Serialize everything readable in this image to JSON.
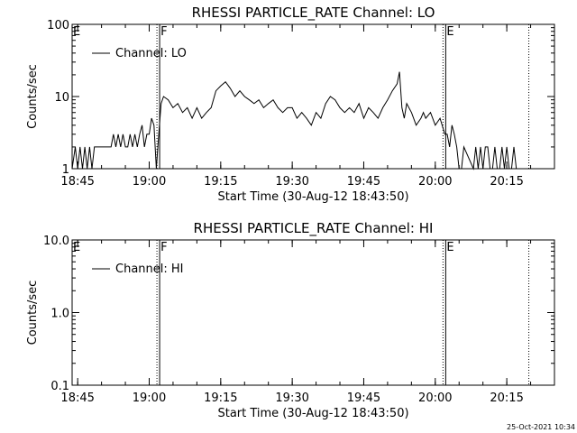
{
  "chart_data": [
    {
      "type": "line",
      "title": "RHESSI PARTICLE_RATE Channel: LO",
      "xlabel": "Start Time (30-Aug-12 18:43:50)",
      "ylabel": "Counts/sec",
      "y_scale": "log",
      "ylim": [
        1,
        100
      ],
      "xlim": [
        "18:43:50",
        "20:25:00"
      ],
      "x_ticks": [
        "18:45",
        "19:00",
        "19:15",
        "19:30",
        "19:45",
        "20:00",
        "20:15"
      ],
      "y_ticks": [
        "1",
        "10",
        "100"
      ],
      "legend": {
        "placement": "top-left",
        "entries": [
          "Channel: LO"
        ]
      },
      "region_markers": [
        {
          "label": "E",
          "time": "18:43:50",
          "style": "dotted"
        },
        {
          "label": "F",
          "time": "19:02",
          "style": "dotted+solid"
        },
        {
          "label": "E",
          "time": "20:02",
          "style": "dotted+solid"
        },
        {
          "label": "",
          "time": "20:20",
          "style": "dotted"
        }
      ],
      "series": [
        {
          "name": "Channel: LO",
          "x": [
            "18:43:50",
            "18:44:30",
            "18:45:00",
            "18:45:30",
            "18:46:00",
            "18:46:30",
            "18:47:00",
            "18:47:30",
            "18:48:00",
            "18:48:30",
            "18:49:00",
            "18:52:00",
            "18:52:30",
            "18:53:00",
            "18:53:30",
            "18:54:00",
            "18:54:30",
            "18:55:00",
            "18:55:30",
            "18:56:00",
            "18:56:30",
            "18:57:00",
            "18:57:30",
            "18:58:00",
            "18:58:30",
            "18:59:00",
            "18:59:30",
            "19:00:00",
            "19:00:30",
            "19:01:00",
            "19:01:30",
            "19:02:00",
            "19:02:30",
            "19:03:00",
            "19:04:00",
            "19:05:00",
            "19:06:00",
            "19:07:00",
            "19:08:00",
            "19:09:00",
            "19:10:00",
            "19:11:00",
            "19:12:00",
            "19:13:00",
            "19:14:00",
            "19:15:00",
            "19:16:00",
            "19:17:00",
            "19:18:00",
            "19:19:00",
            "19:20:00",
            "19:21:00",
            "19:22:00",
            "19:23:00",
            "19:24:00",
            "19:25:00",
            "19:26:00",
            "19:27:00",
            "19:28:00",
            "19:29:00",
            "19:30:00",
            "19:31:00",
            "19:32:00",
            "19:33:00",
            "19:34:00",
            "19:35:00",
            "19:36:00",
            "19:37:00",
            "19:38:00",
            "19:39:00",
            "19:40:00",
            "19:41:00",
            "19:42:00",
            "19:43:00",
            "19:44:00",
            "19:45:00",
            "19:46:00",
            "19:47:00",
            "19:48:00",
            "19:49:00",
            "19:50:00",
            "19:51:00",
            "19:52:00",
            "19:52:30",
            "19:53:00",
            "19:53:30",
            "19:54:00",
            "19:55:00",
            "19:56:00",
            "19:57:00",
            "19:57:30",
            "19:58:00",
            "19:59:00",
            "20:00:00",
            "20:01:00",
            "20:02:00",
            "20:02:30",
            "20:03:00",
            "20:03:30",
            "20:04:00",
            "20:04:30",
            "20:05:00",
            "20:05:30",
            "20:06:00",
            "20:08:00",
            "20:08:30",
            "20:09:00",
            "20:09:30",
            "20:10:00",
            "20:10:30",
            "20:11:00",
            "20:11:30",
            "20:12:00",
            "20:12:30",
            "20:13:00",
            "20:13:30",
            "20:14:00",
            "20:14:30",
            "20:15:00",
            "20:15:30",
            "20:16:00",
            "20:16:30",
            "20:17:00"
          ],
          "y": [
            1,
            2,
            1,
            2,
            1,
            2,
            1,
            2,
            1,
            2,
            2,
            2,
            3,
            2,
            3,
            2,
            3,
            2,
            2,
            3,
            2,
            3,
            2,
            3,
            4,
            2,
            3,
            3,
            5,
            4,
            1,
            3,
            8,
            10,
            9,
            7,
            8,
            6,
            7,
            5,
            7,
            5,
            6,
            7,
            12,
            14,
            16,
            13,
            10,
            12,
            10,
            9,
            8,
            9,
            7,
            8,
            9,
            7,
            6,
            7,
            7,
            5,
            6,
            5,
            4,
            6,
            5,
            8,
            10,
            9,
            7,
            6,
            7,
            6,
            8,
            5,
            7,
            6,
            5,
            7,
            9,
            12,
            15,
            22,
            7,
            5,
            8,
            6,
            4,
            5,
            6,
            5,
            6,
            4,
            5,
            3,
            3,
            2,
            4,
            3,
            2,
            1,
            1,
            2,
            1,
            2,
            1,
            2,
            1,
            2,
            2,
            1,
            1,
            2,
            1,
            1,
            2,
            1,
            2,
            1,
            1,
            2,
            1
          ]
        }
      ]
    },
    {
      "type": "line",
      "title": "RHESSI PARTICLE_RATE Channel: HI",
      "xlabel": "Start Time (30-Aug-12 18:43:50)",
      "ylabel": "Counts/sec",
      "y_scale": "log",
      "ylim": [
        0.1,
        10
      ],
      "xlim": [
        "18:43:50",
        "20:25:00"
      ],
      "x_ticks": [
        "18:45",
        "19:00",
        "19:15",
        "19:30",
        "19:45",
        "20:00",
        "20:15"
      ],
      "y_ticks": [
        "0.1",
        "1.0",
        "10.0"
      ],
      "legend": {
        "placement": "top-left",
        "entries": [
          "Channel: HI"
        ]
      },
      "region_markers": [
        {
          "label": "E",
          "time": "18:43:50",
          "style": "dotted"
        },
        {
          "label": "F",
          "time": "19:02",
          "style": "dotted+solid"
        },
        {
          "label": "E",
          "time": "20:02",
          "style": "dotted+solid"
        },
        {
          "label": "",
          "time": "20:20",
          "style": "dotted"
        }
      ],
      "series": [
        {
          "name": "Channel: HI",
          "x": [],
          "y": []
        }
      ]
    }
  ],
  "footer": {
    "date_stamp": "25-Oct-2021 10:34"
  }
}
